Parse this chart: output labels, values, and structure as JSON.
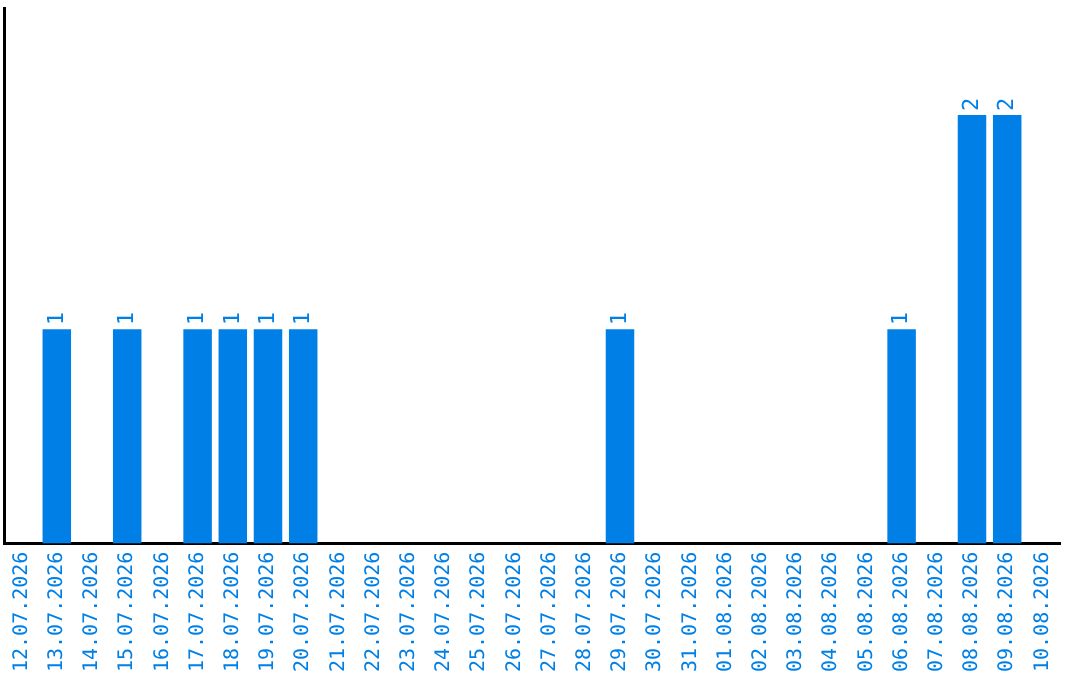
{
  "chart_data": {
    "type": "bar",
    "categories": [
      "12.07.2026",
      "13.07.2026",
      "14.07.2026",
      "15.07.2026",
      "16.07.2026",
      "17.07.2026",
      "18.07.2026",
      "19.07.2026",
      "20.07.2026",
      "21.07.2026",
      "22.07.2026",
      "23.07.2026",
      "24.07.2026",
      "25.07.2026",
      "26.07.2026",
      "27.07.2026",
      "28.07.2026",
      "29.07.2026",
      "30.07.2026",
      "31.07.2026",
      "01.08.2026",
      "02.08.2026",
      "03.08.2026",
      "04.08.2026",
      "05.08.2026",
      "06.08.2026",
      "07.08.2026",
      "08.08.2026",
      "09.08.2026",
      "10.08.2026"
    ],
    "values": [
      0,
      1,
      0,
      1,
      0,
      1,
      1,
      1,
      1,
      0,
      0,
      0,
      0,
      0,
      0,
      0,
      0,
      1,
      0,
      0,
      0,
      0,
      0,
      0,
      0,
      1,
      0,
      2,
      2,
      0
    ],
    "value_labels": [
      null,
      "1",
      null,
      "1",
      null,
      "1",
      "1",
      "1",
      "1",
      null,
      null,
      null,
      null,
      null,
      null,
      null,
      null,
      "1",
      null,
      null,
      null,
      null,
      null,
      null,
      null,
      "1",
      null,
      "2",
      "2",
      null
    ],
    "color": "#0080e6",
    "tick_labels": "x",
    "grid": false,
    "legend": false
  }
}
